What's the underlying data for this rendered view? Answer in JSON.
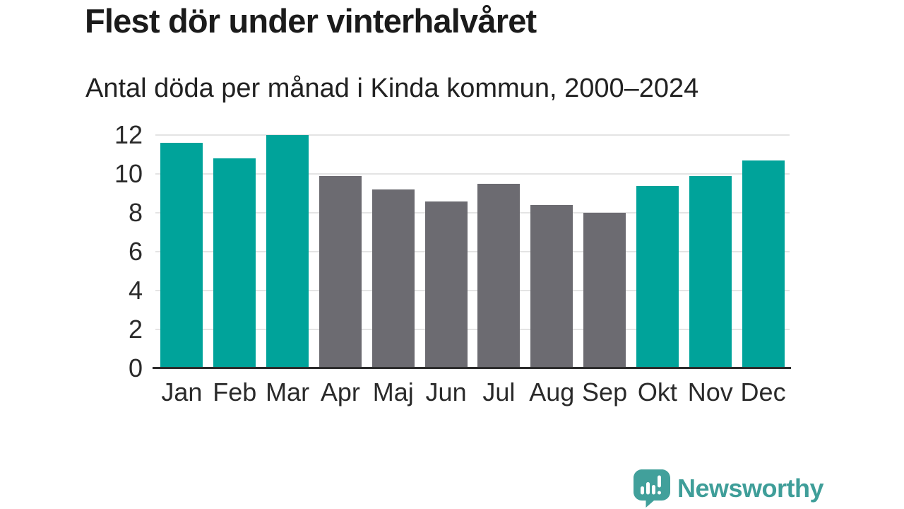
{
  "header": {
    "title": "Flest dör under vinterhalvåret",
    "subtitle": "Antal döda per månad i Kinda kommun, 2000–2024"
  },
  "chart_data": {
    "type": "bar",
    "title": "Flest dör under vinterhalvåret",
    "subtitle": "Antal döda per månad i Kinda kommun, 2000–2024",
    "categories": [
      "Jan",
      "Feb",
      "Mar",
      "Apr",
      "Maj",
      "Jun",
      "Jul",
      "Aug",
      "Sep",
      "Okt",
      "Nov",
      "Dec"
    ],
    "values": [
      11.6,
      10.8,
      12.0,
      9.9,
      9.2,
      8.6,
      9.5,
      8.4,
      8.0,
      9.4,
      9.9,
      10.7
    ],
    "bar_colors": [
      "#00a39a",
      "#00a39a",
      "#00a39a",
      "#6c6b71",
      "#6c6b71",
      "#6c6b71",
      "#6c6b71",
      "#6c6b71",
      "#6c6b71",
      "#00a39a",
      "#00a39a",
      "#00a39a"
    ],
    "highlight_color": "#00a39a",
    "muted_color": "#6c6b71",
    "xlabel": "",
    "ylabel": "",
    "ylim": [
      0,
      12
    ],
    "yticks": [
      0,
      2,
      4,
      6,
      8,
      10,
      12
    ],
    "grid": true,
    "legend": false
  },
  "branding": {
    "name": "Newsworthy",
    "logo_icon": "bar-chart-speech-bubble-icon",
    "logo_color": "#3f9e99"
  }
}
